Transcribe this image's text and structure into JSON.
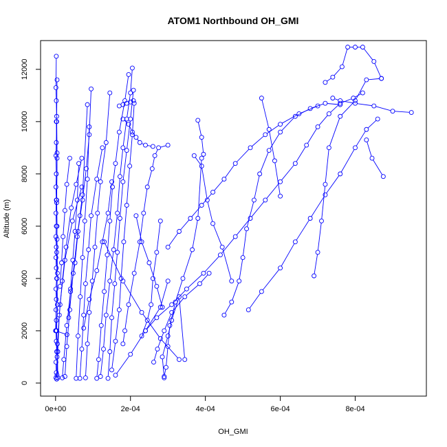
{
  "chart_data": {
    "type": "line",
    "title": "ATOM1 Northbound OH_GMI",
    "xlabel": "OH_GMI",
    "ylabel": "Altitude (m)",
    "xlim": [
      -4e-05,
      0.00099
    ],
    "ylim": [
      -500,
      13100
    ],
    "xticks": [
      0,
      0.0002,
      0.0004,
      0.0006,
      0.0008
    ],
    "xtick_labels": [
      "0e+00",
      "2e-04",
      "4e-04",
      "6e-04",
      "8e-04"
    ],
    "yticks": [
      0,
      2000,
      4000,
      6000,
      8000,
      10000,
      12000
    ],
    "ytick_labels": [
      "0",
      "2000",
      "4000",
      "6000",
      "8000",
      "10000",
      "12000"
    ],
    "grid": false,
    "marker": "open-circle",
    "color": "#0000ff",
    "series": [
      {
        "x": [
          1e-06,
          2e-06,
          1e-06,
          3e-06,
          2e-06,
          1e-06,
          2e-06,
          1e-06,
          2e-06,
          1e-06,
          3e-06,
          2e-06,
          1e-06,
          2e-06,
          1e-06,
          2e-06,
          1e-06,
          2e-06,
          1e-06,
          2e-06,
          1e-06,
          2e-06,
          3e-06,
          2e-06,
          1e-06,
          2e-06
        ],
        "y": [
          200,
          400,
          800,
          1200,
          1600,
          2000,
          2400,
          2800,
          3200,
          3600,
          4000,
          4400,
          4800,
          5200,
          5600,
          6000,
          6500,
          7000,
          7500,
          8000,
          8700,
          9200,
          10000,
          10800,
          11300,
          12500
        ]
      },
      {
        "x": [
          3e-06,
          4e-06,
          3e-06,
          5e-06,
          4e-06,
          3e-06,
          4e-06,
          3e-06,
          4e-06,
          3e-06,
          4e-06
        ],
        "y": [
          150,
          1000,
          2000,
          3000,
          4000,
          5000,
          6000,
          7000,
          8800,
          10200,
          11600
        ]
      },
      {
        "x": [
          3.05e-05,
          0.0,
          5e-06,
          4e-06,
          3e-06,
          4e-06,
          2e-06
        ],
        "y": [
          1850,
          2000,
          4200,
          5500,
          6900,
          8600,
          10000
        ]
      },
      {
        "x": [
          6e-06,
          5e-06,
          1.2e-05,
          2.5e-05,
          4.5e-05,
          7e-05
        ],
        "y": [
          200,
          1500,
          3000,
          4700,
          6200,
          7500
        ]
      },
      {
        "x": [
          4e-06,
          6e-06,
          1e-05,
          1.8e-05,
          2.8e-05,
          4.2e-05,
          5.5e-05,
          7e-05
        ],
        "y": [
          300,
          1200,
          2600,
          3900,
          5200,
          6700,
          7600,
          8600
        ]
      },
      {
        "x": [
          1.8e-05,
          2.2e-05,
          3e-05,
          4e-05,
          5.2e-05,
          6e-05,
          7.2e-05,
          8.2e-05,
          9e-05,
          9.5e-05
        ],
        "y": [
          200,
          900,
          2200,
          3500,
          4600,
          5800,
          7000,
          8200,
          9500,
          11250
        ]
      },
      {
        "x": [
          2.5e-05,
          3e-05,
          3.8e-05,
          4.7e-05,
          5.8e-05,
          6.5e-05,
          7.2e-05,
          8.5e-05
        ],
        "y": [
          250,
          1400,
          2800,
          4200,
          5600,
          6400,
          7200,
          10650
        ]
      },
      {
        "x": [
          5.5e-05,
          6e-05,
          6.6e-05,
          7.2e-05,
          7.8e-05,
          8.5e-05,
          9e-05
        ],
        "y": [
          180,
          1800,
          3300,
          4800,
          6200,
          7800,
          9800
        ]
      },
      {
        "x": [
          6.5e-05,
          7e-05,
          7.5e-05,
          8e-05,
          8.8e-05,
          9.5e-05,
          0.00011,
          0.000125
        ],
        "y": [
          180,
          1300,
          2600,
          3800,
          5100,
          6400,
          7800,
          9000
        ]
      },
      {
        "x": [
          8e-05,
          8.5e-05,
          9e-05,
          9.8e-05,
          0.000105,
          0.000112,
          0.00012,
          0.000135,
          0.000145
        ],
        "y": [
          200,
          1500,
          2700,
          3900,
          5200,
          6500,
          7700,
          9200,
          11100
        ]
      },
      {
        "x": [
          0.00011,
          0.000115,
          0.000122,
          0.00013,
          0.000138,
          0.000145,
          0.000152,
          0.00016,
          0.00017,
          0.000185,
          0.000195
        ],
        "y": [
          180,
          900,
          2200,
          3500,
          4900,
          6200,
          7500,
          8400,
          9600,
          10800,
          11800
        ]
      },
      {
        "x": [
          0.00012,
          0.000128,
          0.000135,
          0.000145,
          0.000155,
          0.000165,
          0.000172,
          0.00018,
          0.00019,
          0.0002,
          0.000205
        ],
        "y": [
          250,
          1300,
          2600,
          3900,
          5100,
          6500,
          7900,
          9000,
          10100,
          11100,
          12050
        ]
      },
      {
        "x": [
          0.00014,
          0.000145,
          0.00015,
          0.000158,
          0.000165,
          0.000172,
          0.00018,
          0.00019,
          0.0002,
          0.000208
        ],
        "y": [
          180,
          1200,
          2500,
          3800,
          5000,
          6300,
          7700,
          8900,
          10100,
          11200
        ]
      },
      {
        "x": [
          0.00015,
          0.00016,
          0.00017,
          0.000175,
          0.000182,
          0.00019,
          0.000198,
          0.000205,
          0.00021
        ],
        "y": [
          500,
          1600,
          2800,
          4000,
          5400,
          6800,
          8300,
          9500,
          10700
        ]
      },
      {
        "x": [
          0.00018,
          0.000185,
          0.000195,
          0.00021,
          0.000225,
          0.000235,
          0.000245,
          0.000258,
          0.000265,
          0.000275,
          0.0003
        ],
        "y": [
          1500,
          2000,
          3000,
          4200,
          5400,
          6500,
          7500,
          8200,
          8700,
          9000,
          9100
        ]
      },
      {
        "x": [
          0.00029,
          0.000285,
          0.0003,
          0.00031,
          0.00033,
          0.000345
        ],
        "y": [
          200,
          1000,
          1800,
          2400,
          3300,
          900
        ]
      },
      {
        "x": [
          0.00029,
          0.000295,
          0.0003,
          0.000305,
          0.00032,
          0.00034,
          0.000365,
          0.00038,
          0.00039
        ],
        "y": [
          250,
          600,
          1400,
          2200,
          3100,
          4000,
          5100,
          6300,
          8600
        ]
      },
      {
        "x": [
          0.00023,
          0.000245,
          0.000255,
          0.00026,
          0.00027,
          0.00028
        ],
        "y": [
          1800,
          2400,
          3000,
          4000,
          5000,
          6200
        ]
      },
      {
        "x": [
          0.000262,
          0.000272,
          0.00029,
          0.00031,
          0.000345,
          0.000385,
          0.00041
        ],
        "y": [
          800,
          1300,
          2000,
          2700,
          3300,
          3800,
          4200
        ]
      },
      {
        "x": [
          0.00024,
          0.00027,
          0.00031,
          0.00035,
          0.000395,
          0.00044,
          0.00048,
          0.00052,
          0.00056,
          0.0006,
          0.00064,
          0.00067,
          0.0007,
          0.00073,
          0.00076,
          0.000795,
          0.00082
        ],
        "y": [
          2000,
          2500,
          3000,
          3600,
          4200,
          4900,
          5600,
          6300,
          7000,
          7700,
          8400,
          9100,
          9800,
          10300,
          10700,
          10900,
          11100
        ]
      },
      {
        "x": [
          0.00037,
          0.00039,
          0.000405,
          0.00042,
          0.000445,
          0.00047
        ],
        "y": [
          8700,
          8300,
          7000,
          6100,
          5200,
          3900
        ]
      },
      {
        "x": [
          0.0003,
          0.00033,
          0.00036,
          0.00039,
          0.00042,
          0.00045,
          0.00048,
          0.00052,
          0.00056,
          0.0006,
          0.00065,
          0.0007
        ],
        "y": [
          5200,
          5800,
          6300,
          6800,
          7300,
          7800,
          8400,
          9000,
          9500,
          9900,
          10300,
          10600
        ]
      },
      {
        "x": [
          0.00045,
          0.00047,
          0.00049,
          0.0005,
          0.00051,
          0.00053,
          0.000545,
          0.00057,
          0.0006,
          0.00064,
          0.00068,
          0.00072,
          0.00076
        ],
        "y": [
          2600,
          3100,
          3900,
          4800,
          5900,
          7000,
          8000,
          8900,
          9600,
          10200,
          10500,
          10700,
          10650
        ]
      },
      {
        "x": [
          0.000515,
          0.00055,
          0.0006,
          0.00064,
          0.00068,
          0.00072,
          0.00076,
          0.0008,
          0.00083,
          0.00086
        ],
        "y": [
          2800,
          3500,
          4400,
          5400,
          6300,
          7200,
          8000,
          9000,
          9700,
          10100
        ]
      },
      {
        "x": [
          0.00069,
          0.0007,
          0.00071,
          0.00072,
          0.00073,
          0.00076,
          0.0008,
          0.00083,
          0.00087
        ],
        "y": [
          4100,
          5000,
          6200,
          7600,
          9000,
          10200,
          10800,
          11600,
          11650
        ]
      },
      {
        "x": [
          0.00072,
          0.00074,
          0.000765,
          0.00078,
          0.0008,
          0.00082,
          0.00085,
          0.00087
        ],
        "y": [
          11500,
          11700,
          12100,
          12850,
          12850,
          12850,
          12300,
          11650
        ]
      },
      {
        "x": [
          0.00038,
          0.00039,
          0.000395
        ],
        "y": [
          10050,
          9400,
          8750
        ]
      },
      {
        "x": [
          0.00055,
          0.00057,
          0.000585,
          0.0006
        ],
        "y": [
          10900,
          9700,
          8500,
          7150
        ]
      },
      {
        "x": [
          0.00083,
          0.000845,
          0.000875
        ],
        "y": [
          9300,
          8600,
          7900
        ]
      },
      {
        "x": [
          0.00095,
          0.0009,
          0.00085,
          0.0008,
          0.00076,
          0.00074
        ],
        "y": [
          10350,
          10400,
          10600,
          10700,
          10800,
          10900
        ]
      },
      {
        "x": [
          0.00013,
          0.00018,
          0.00023,
          0.00028,
          0.00033
        ],
        "y": [
          5400,
          3900,
          2700,
          1700,
          900
        ]
      },
      {
        "x": [
          0.00016,
          0.0002,
          0.00024,
          0.00028,
          0.0003
        ],
        "y": [
          300,
          1100,
          2000,
          2900,
          3900
        ]
      },
      {
        "x": [
          1.2e-05,
          1.6e-05,
          2e-05,
          2.5e-05,
          3e-05,
          3.8e-05
        ],
        "y": [
          3700,
          4600,
          5600,
          6600,
          7600,
          8600
        ]
      },
      {
        "x": [
          3.5e-05,
          4e-05,
          4.6e-05,
          5.2e-05,
          5.8e-05,
          6.2e-05
        ],
        "y": [
          2500,
          3600,
          4700,
          5800,
          7000,
          8400
        ]
      },
      {
        "x": [
          0.00018,
          0.000195,
          0.000205,
          0.000215,
          0.000225,
          0.00024,
          0.00026
        ],
        "y": [
          10100,
          9900,
          9600,
          9400,
          9200,
          9100,
          9050
        ]
      },
      {
        "x": [
          0.00017,
          0.00018,
          0.00019,
          0.0002,
          0.000208
        ],
        "y": [
          10600,
          10650,
          10700,
          10750,
          10800
        ]
      },
      {
        "x": [
          7.5e-05,
          9e-05,
          0.00011,
          0.000125,
          0.00014,
          0.00015
        ],
        "y": [
          2100,
          3200,
          4300,
          5400,
          6500,
          7700
        ]
      },
      {
        "x": [
          0.000215,
          0.00023,
          0.00025,
          0.00027,
          0.000285
        ],
        "y": [
          6400,
          5400,
          4600,
          3700,
          2900
        ]
      }
    ]
  }
}
